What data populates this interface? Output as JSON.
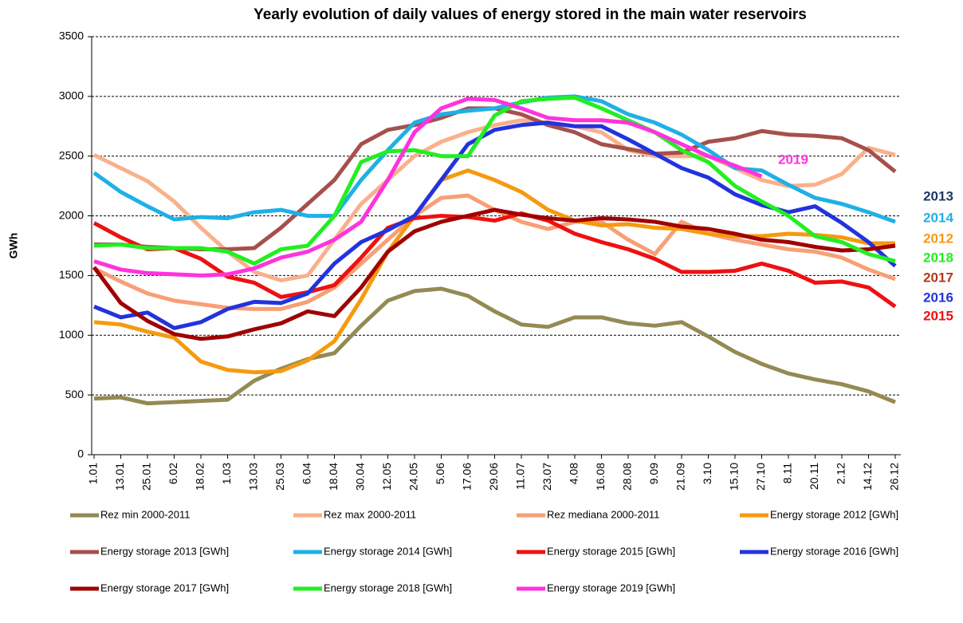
{
  "chart_data": {
    "type": "line",
    "title": "Yearly evolution of daily values of energy stored in the main water reservoirs",
    "y_label": "GWh",
    "categories": [
      "1.01",
      "13.01",
      "25.01",
      "6.02",
      "18.02",
      "1.03",
      "13.03",
      "25.03",
      "6.04",
      "18.04",
      "30.04",
      "12.05",
      "24.05",
      "5.06",
      "17.06",
      "29.06",
      "11.07",
      "23.07",
      "4.08",
      "16.08",
      "28.08",
      "9.09",
      "21.09",
      "3.10",
      "15.10",
      "27.10",
      "8.11",
      "20.11",
      "2.12",
      "14.12",
      "26.12"
    ],
    "ylim": [
      0,
      3500
    ],
    "yticks": [
      0,
      500,
      1000,
      1500,
      2000,
      2500,
      3000,
      3500
    ],
    "grid": true,
    "series": [
      {
        "name": "Rez min 2000-2011",
        "color": "#948a54",
        "values": [
          470,
          480,
          430,
          440,
          450,
          460,
          620,
          720,
          800,
          850,
          1080,
          1290,
          1370,
          1390,
          1330,
          1200,
          1090,
          1070,
          1150,
          1150,
          1100,
          1080,
          1110,
          990,
          860,
          760,
          680,
          630,
          590,
          530,
          440
        ]
      },
      {
        "name": "Rez max 2000-2011",
        "color": "#fab08a",
        "values": [
          2510,
          2400,
          2290,
          2120,
          1900,
          1700,
          1530,
          1460,
          1500,
          1800,
          2100,
          2300,
          2500,
          2620,
          2700,
          2760,
          2800,
          2780,
          2750,
          2700,
          2550,
          2500,
          2500,
          2500,
          2400,
          2300,
          2250,
          2260,
          2350,
          2570,
          2510
        ]
      },
      {
        "name": "Rez mediana 2000-2011",
        "color": "#f79f76",
        "values": [
          1560,
          1450,
          1350,
          1290,
          1260,
          1230,
          1220,
          1220,
          1280,
          1400,
          1600,
          1800,
          2000,
          2150,
          2170,
          2050,
          1950,
          1890,
          1950,
          1950,
          1800,
          1680,
          1950,
          1850,
          1800,
          1760,
          1720,
          1700,
          1650,
          1550,
          1470
        ]
      },
      {
        "name": "Energy storage 2012 [GWh]",
        "color": "#f59a0f",
        "values": [
          1110,
          1090,
          1030,
          980,
          780,
          710,
          690,
          700,
          790,
          950,
          1300,
          1700,
          2000,
          2300,
          2380,
          2300,
          2200,
          2050,
          1960,
          1920,
          1930,
          1900,
          1890,
          1850,
          1830,
          1830,
          1850,
          1840,
          1820,
          1770,
          1770
        ]
      },
      {
        "name": "Energy storage 2013 [GWh]",
        "color": "#a5504c",
        "values": [
          1760,
          1760,
          1740,
          1730,
          1720,
          1720,
          1730,
          1900,
          2100,
          2300,
          2600,
          2720,
          2760,
          2820,
          2900,
          2900,
          2850,
          2760,
          2700,
          2600,
          2560,
          2520,
          2530,
          2620,
          2650,
          2710,
          2680,
          2670,
          2650,
          2550,
          2370
        ]
      },
      {
        "name": "Energy storage 2014 [GWh]",
        "color": "#1fb0e6",
        "values": [
          2360,
          2200,
          2080,
          1970,
          1990,
          1980,
          2030,
          2050,
          2000,
          2000,
          2300,
          2550,
          2780,
          2850,
          2880,
          2900,
          2950,
          2990,
          3000,
          2960,
          2850,
          2780,
          2680,
          2550,
          2400,
          2380,
          2260,
          2150,
          2100,
          2030,
          1950
        ]
      },
      {
        "name": "Energy storage 2015 [GWh]",
        "color": "#ee1111",
        "values": [
          1940,
          1820,
          1720,
          1730,
          1640,
          1490,
          1440,
          1320,
          1360,
          1420,
          1650,
          1900,
          1980,
          2000,
          1990,
          1960,
          2020,
          1960,
          1850,
          1780,
          1720,
          1640,
          1530,
          1530,
          1540,
          1600,
          1540,
          1440,
          1450,
          1400,
          1240
        ]
      },
      {
        "name": "Energy storage 2016 [GWh]",
        "color": "#2233dd",
        "values": [
          1240,
          1150,
          1190,
          1060,
          1110,
          1220,
          1280,
          1270,
          1350,
          1600,
          1780,
          1880,
          2000,
          2300,
          2600,
          2720,
          2760,
          2780,
          2750,
          2750,
          2640,
          2520,
          2400,
          2320,
          2180,
          2090,
          2030,
          2080,
          1940,
          1780,
          1580
        ]
      },
      {
        "name": "Energy storage 2017 [GWh]",
        "color": "#a00000",
        "values": [
          1570,
          1270,
          1120,
          1010,
          970,
          990,
          1050,
          1100,
          1200,
          1160,
          1400,
          1700,
          1870,
          1950,
          2000,
          2050,
          2010,
          1980,
          1960,
          1980,
          1970,
          1950,
          1910,
          1890,
          1850,
          1800,
          1780,
          1740,
          1710,
          1720,
          1750
        ]
      },
      {
        "name": "Energy storage 2018 [GWh]",
        "color": "#22ee22",
        "values": [
          1750,
          1760,
          1730,
          1730,
          1730,
          1700,
          1600,
          1720,
          1750,
          2000,
          2450,
          2540,
          2550,
          2500,
          2500,
          2840,
          2960,
          2980,
          2990,
          2900,
          2800,
          2700,
          2550,
          2450,
          2250,
          2120,
          2000,
          1830,
          1780,
          1680,
          1620
        ]
      },
      {
        "name": "Energy storage 2019 [GWh]",
        "color": "#ff33dd",
        "values": [
          1620,
          1550,
          1520,
          1510,
          1500,
          1510,
          1560,
          1650,
          1700,
          1800,
          1950,
          2300,
          2700,
          2900,
          2980,
          2970,
          2900,
          2820,
          2800,
          2800,
          2780,
          2700,
          2600,
          2500,
          2420,
          2330,
          null,
          null,
          null,
          null,
          null
        ]
      }
    ],
    "annotations": [
      {
        "text": "2019",
        "color": "#ff33dd"
      },
      {
        "text": "2013",
        "color": "#1f3864"
      },
      {
        "text": "2014",
        "color": "#1fb0e6"
      },
      {
        "text": "2012",
        "color": "#f59a0f"
      },
      {
        "text": "2018",
        "color": "#22ee22"
      },
      {
        "text": "2017",
        "color": "#b03a1a"
      },
      {
        "text": "2016",
        "color": "#2233dd"
      },
      {
        "text": "2015",
        "color": "#ee1111"
      }
    ]
  }
}
